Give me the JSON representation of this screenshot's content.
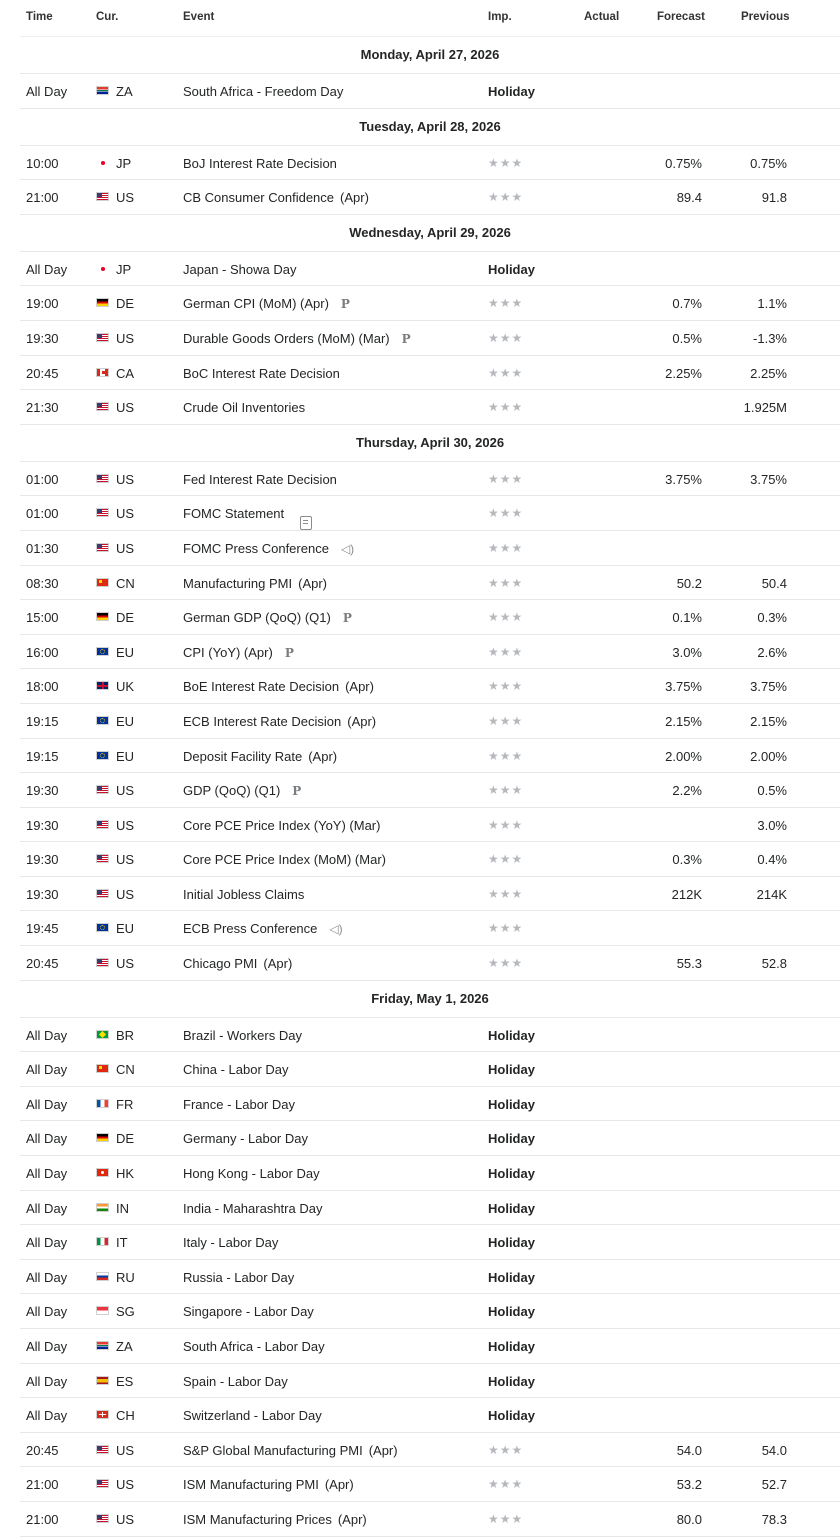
{
  "columns": {
    "time": "Time",
    "cur": "Cur.",
    "event": "Event",
    "imp": "Imp.",
    "actual": "Actual",
    "forecast": "Forecast",
    "previous": "Previous"
  },
  "holiday_label": "Holiday",
  "importance_glyph": "★★★",
  "colors": {
    "text": "#232526",
    "star": "#b5b8bc",
    "divider": "#e6e9eb"
  },
  "sections": [
    {
      "date": "Monday, April 27, 2026",
      "rows": [
        {
          "time": "All Day",
          "cur": "ZA",
          "event": "South Africa - Freedom Day",
          "period": "",
          "icon": "",
          "holiday": true,
          "actual": "",
          "forecast": "",
          "previous": ""
        }
      ]
    },
    {
      "date": "Tuesday, April 28, 2026",
      "rows": [
        {
          "time": "10:00",
          "cur": "JP",
          "event": "BoJ Interest Rate Decision",
          "period": "",
          "icon": "",
          "holiday": false,
          "actual": "",
          "forecast": "0.75%",
          "previous": "0.75%"
        },
        {
          "time": "21:00",
          "cur": "US",
          "event": "CB Consumer Confidence",
          "period": "(Apr)",
          "icon": "",
          "holiday": false,
          "actual": "",
          "forecast": "89.4",
          "previous": "91.8"
        }
      ]
    },
    {
      "date": "Wednesday, April 29, 2026",
      "rows": [
        {
          "time": "All Day",
          "cur": "JP",
          "event": "Japan - Showa Day",
          "period": "",
          "icon": "",
          "holiday": true,
          "actual": "",
          "forecast": "",
          "previous": ""
        },
        {
          "time": "19:00",
          "cur": "DE",
          "event": "German CPI (MoM) (Apr)",
          "period": "",
          "icon": "preliminary",
          "holiday": false,
          "actual": "",
          "forecast": "0.7%",
          "previous": "1.1%"
        },
        {
          "time": "19:30",
          "cur": "US",
          "event": "Durable Goods Orders (MoM) (Mar)",
          "period": "",
          "icon": "preliminary",
          "holiday": false,
          "actual": "",
          "forecast": "0.5%",
          "previous": "-1.3%"
        },
        {
          "time": "20:45",
          "cur": "CA",
          "event": "BoC Interest Rate Decision",
          "period": "",
          "icon": "",
          "holiday": false,
          "actual": "",
          "forecast": "2.25%",
          "previous": "2.25%"
        },
        {
          "time": "21:30",
          "cur": "US",
          "event": "Crude Oil Inventories",
          "period": "",
          "icon": "",
          "holiday": false,
          "actual": "",
          "forecast": "",
          "previous": "1.925M"
        }
      ]
    },
    {
      "date": "Thursday, April 30, 2026",
      "rows": [
        {
          "time": "01:00",
          "cur": "US",
          "event": "Fed Interest Rate Decision",
          "period": "",
          "icon": "",
          "holiday": false,
          "actual": "",
          "forecast": "3.75%",
          "previous": "3.75%"
        },
        {
          "time": "01:00",
          "cur": "US",
          "event": "FOMC Statement",
          "period": "",
          "icon": "document",
          "holiday": false,
          "actual": "",
          "forecast": "",
          "previous": ""
        },
        {
          "time": "01:30",
          "cur": "US",
          "event": "FOMC Press Conference",
          "period": "",
          "icon": "speaker",
          "holiday": false,
          "actual": "",
          "forecast": "",
          "previous": ""
        },
        {
          "time": "08:30",
          "cur": "CN",
          "event": "Manufacturing PMI",
          "period": "(Apr)",
          "icon": "",
          "holiday": false,
          "actual": "",
          "forecast": "50.2",
          "previous": "50.4"
        },
        {
          "time": "15:00",
          "cur": "DE",
          "event": "German GDP (QoQ) (Q1)",
          "period": "",
          "icon": "preliminary",
          "holiday": false,
          "actual": "",
          "forecast": "0.1%",
          "previous": "0.3%"
        },
        {
          "time": "16:00",
          "cur": "EU",
          "event": "CPI (YoY) (Apr)",
          "period": "",
          "icon": "preliminary",
          "holiday": false,
          "actual": "",
          "forecast": "3.0%",
          "previous": "2.6%"
        },
        {
          "time": "18:00",
          "cur": "UK",
          "event": "BoE Interest Rate Decision",
          "period": "(Apr)",
          "icon": "",
          "holiday": false,
          "actual": "",
          "forecast": "3.75%",
          "previous": "3.75%"
        },
        {
          "time": "19:15",
          "cur": "EU",
          "event": "ECB Interest Rate Decision",
          "period": "(Apr)",
          "icon": "",
          "holiday": false,
          "actual": "",
          "forecast": "2.15%",
          "previous": "2.15%"
        },
        {
          "time": "19:15",
          "cur": "EU",
          "event": "Deposit Facility Rate",
          "period": "(Apr)",
          "icon": "",
          "holiday": false,
          "actual": "",
          "forecast": "2.00%",
          "previous": "2.00%"
        },
        {
          "time": "19:30",
          "cur": "US",
          "event": "GDP (QoQ) (Q1)",
          "period": "",
          "icon": "preliminary",
          "holiday": false,
          "actual": "",
          "forecast": "2.2%",
          "previous": "0.5%"
        },
        {
          "time": "19:30",
          "cur": "US",
          "event": "Core PCE Price Index (YoY) (Mar)",
          "period": "",
          "icon": "",
          "holiday": false,
          "actual": "",
          "forecast": "",
          "previous": "3.0%"
        },
        {
          "time": "19:30",
          "cur": "US",
          "event": "Core PCE Price Index (MoM) (Mar)",
          "period": "",
          "icon": "",
          "holiday": false,
          "actual": "",
          "forecast": "0.3%",
          "previous": "0.4%"
        },
        {
          "time": "19:30",
          "cur": "US",
          "event": "Initial Jobless Claims",
          "period": "",
          "icon": "",
          "holiday": false,
          "actual": "",
          "forecast": "212K",
          "previous": "214K"
        },
        {
          "time": "19:45",
          "cur": "EU",
          "event": "ECB Press Conference",
          "period": "",
          "icon": "speaker",
          "holiday": false,
          "actual": "",
          "forecast": "",
          "previous": ""
        },
        {
          "time": "20:45",
          "cur": "US",
          "event": "Chicago PMI",
          "period": "(Apr)",
          "icon": "",
          "holiday": false,
          "actual": "",
          "forecast": "55.3",
          "previous": "52.8"
        }
      ]
    },
    {
      "date": "Friday, May 1, 2026",
      "rows": [
        {
          "time": "All Day",
          "cur": "BR",
          "event": "Brazil - Workers Day",
          "period": "",
          "icon": "",
          "holiday": true,
          "actual": "",
          "forecast": "",
          "previous": ""
        },
        {
          "time": "All Day",
          "cur": "CN",
          "event": "China - Labor Day",
          "period": "",
          "icon": "",
          "holiday": true,
          "actual": "",
          "forecast": "",
          "previous": ""
        },
        {
          "time": "All Day",
          "cur": "FR",
          "event": "France - Labor Day",
          "period": "",
          "icon": "",
          "holiday": true,
          "actual": "",
          "forecast": "",
          "previous": ""
        },
        {
          "time": "All Day",
          "cur": "DE",
          "event": "Germany - Labor Day",
          "period": "",
          "icon": "",
          "holiday": true,
          "actual": "",
          "forecast": "",
          "previous": ""
        },
        {
          "time": "All Day",
          "cur": "HK",
          "event": "Hong Kong - Labor Day",
          "period": "",
          "icon": "",
          "holiday": true,
          "actual": "",
          "forecast": "",
          "previous": ""
        },
        {
          "time": "All Day",
          "cur": "IN",
          "event": "India - Maharashtra Day",
          "period": "",
          "icon": "",
          "holiday": true,
          "actual": "",
          "forecast": "",
          "previous": ""
        },
        {
          "time": "All Day",
          "cur": "IT",
          "event": "Italy - Labor Day",
          "period": "",
          "icon": "",
          "holiday": true,
          "actual": "",
          "forecast": "",
          "previous": ""
        },
        {
          "time": "All Day",
          "cur": "RU",
          "event": "Russia - Labor Day",
          "period": "",
          "icon": "",
          "holiday": true,
          "actual": "",
          "forecast": "",
          "previous": ""
        },
        {
          "time": "All Day",
          "cur": "SG",
          "event": "Singapore - Labor Day",
          "period": "",
          "icon": "",
          "holiday": true,
          "actual": "",
          "forecast": "",
          "previous": ""
        },
        {
          "time": "All Day",
          "cur": "ZA",
          "event": "South Africa - Labor Day",
          "period": "",
          "icon": "",
          "holiday": true,
          "actual": "",
          "forecast": "",
          "previous": ""
        },
        {
          "time": "All Day",
          "cur": "ES",
          "event": "Spain - Labor Day",
          "period": "",
          "icon": "",
          "holiday": true,
          "actual": "",
          "forecast": "",
          "previous": ""
        },
        {
          "time": "All Day",
          "cur": "CH",
          "event": "Switzerland - Labor Day",
          "period": "",
          "icon": "",
          "holiday": true,
          "actual": "",
          "forecast": "",
          "previous": ""
        },
        {
          "time": "20:45",
          "cur": "US",
          "event": "S&P Global Manufacturing PMI",
          "period": "(Apr)",
          "icon": "",
          "holiday": false,
          "actual": "",
          "forecast": "54.0",
          "previous": "54.0"
        },
        {
          "time": "21:00",
          "cur": "US",
          "event": "ISM Manufacturing PMI",
          "period": "(Apr)",
          "icon": "",
          "holiday": false,
          "actual": "",
          "forecast": "53.2",
          "previous": "52.7"
        },
        {
          "time": "21:00",
          "cur": "US",
          "event": "ISM Manufacturing Prices",
          "period": "(Apr)",
          "icon": "",
          "holiday": false,
          "actual": "",
          "forecast": "80.0",
          "previous": "78.3"
        }
      ]
    }
  ]
}
